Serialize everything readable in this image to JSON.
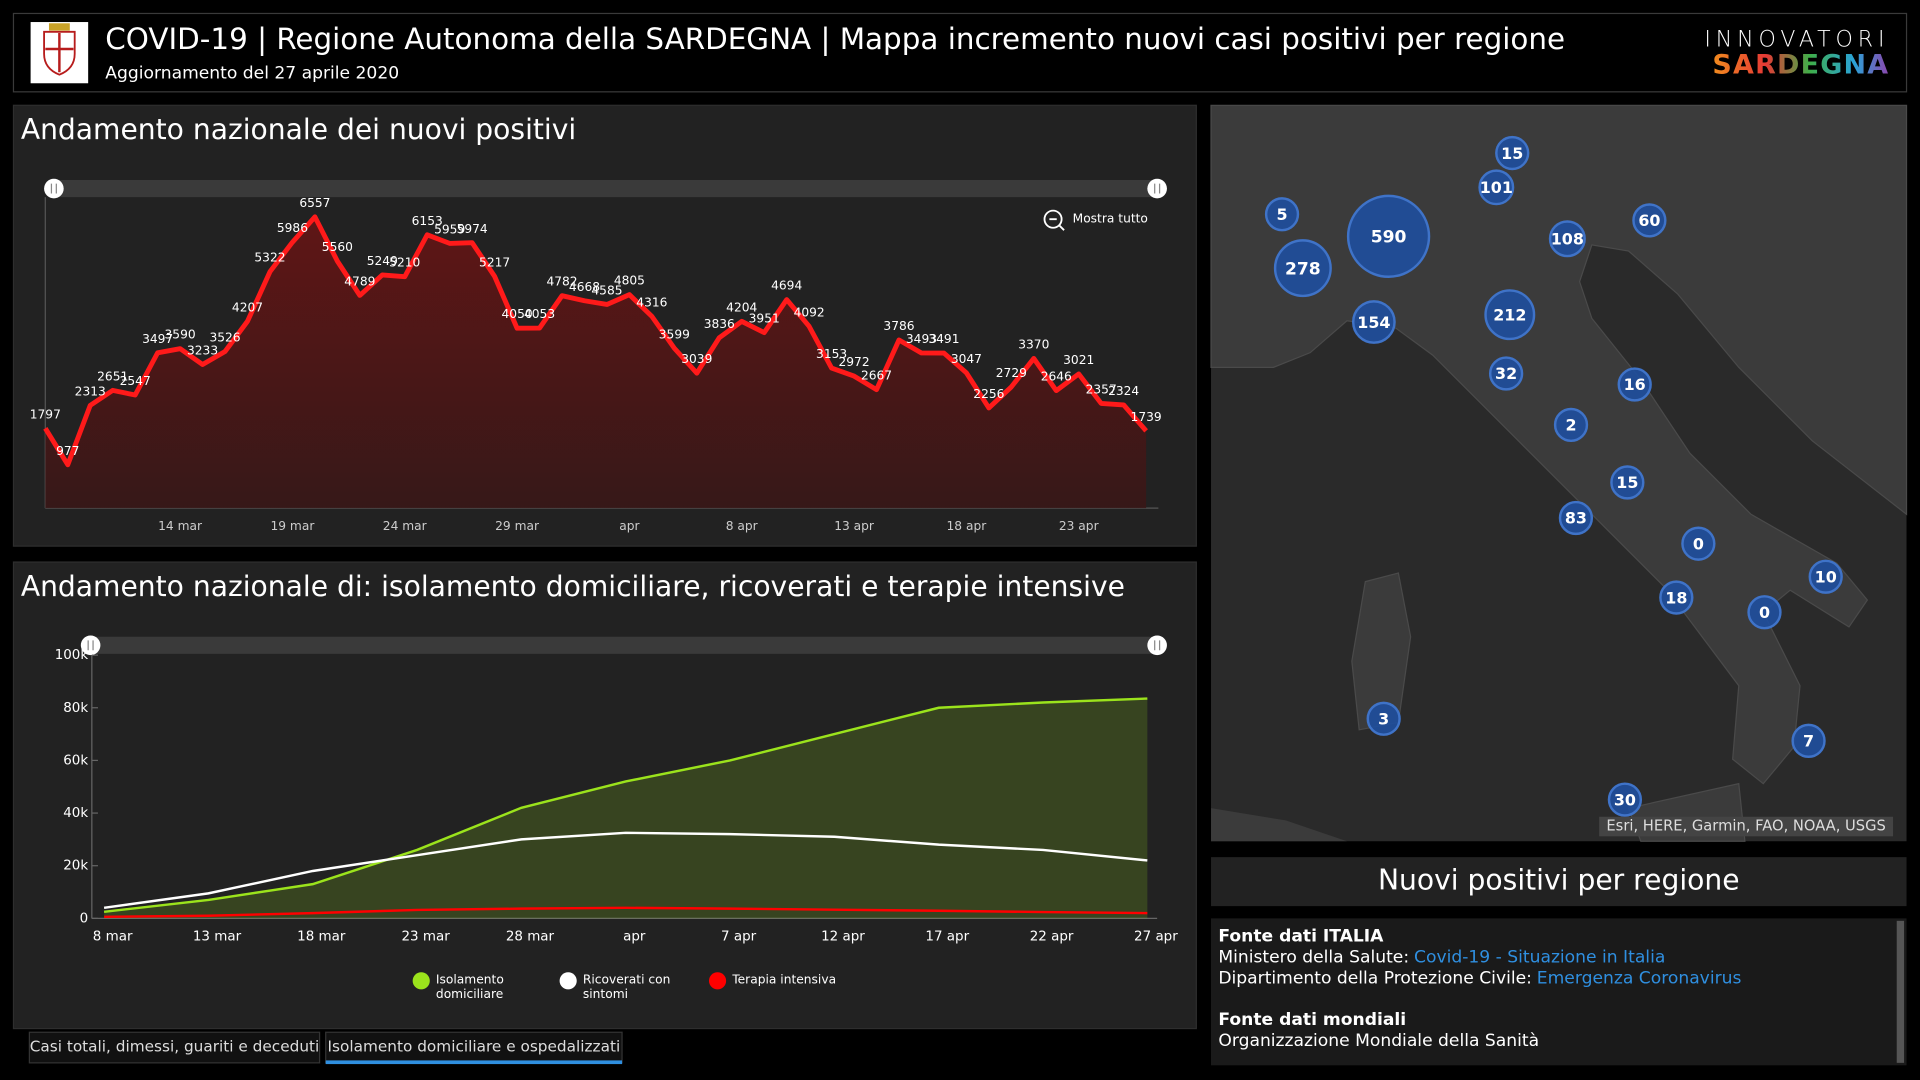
{
  "header": {
    "title": "COVID-19 | Regione Autonoma della SARDEGNA | Mappa incremento nuovi casi positivi per regione",
    "subtitle": "Aggiornamento del 27 aprile 2020",
    "logo_line1": "INNOVATORI",
    "logo_line2": "SARDEGNA"
  },
  "chart_data": [
    {
      "type": "area",
      "title": "Andamento nazionale dei nuovi positivi",
      "zoom_label": "Mostra tutto",
      "categories": [
        null,
        null,
        null,
        null,
        null,
        null,
        "14 mar",
        null,
        null,
        null,
        null,
        "19 mar",
        null,
        null,
        null,
        null,
        "24 mar",
        null,
        null,
        null,
        null,
        "29 mar",
        null,
        null,
        null,
        null,
        "apr",
        null,
        null,
        null,
        null,
        "8 apr",
        null,
        null,
        null,
        null,
        "13 apr",
        null,
        null,
        null,
        null,
        "18 apr",
        null,
        null,
        null,
        null,
        "23 apr",
        null,
        null,
        null
      ],
      "values": [
        1797,
        977,
        2313,
        2651,
        2547,
        3497,
        3590,
        3233,
        3526,
        4207,
        5322,
        5986,
        6557,
        5560,
        4789,
        5249,
        5210,
        6153,
        5959,
        5974,
        5217,
        4050,
        4053,
        4782,
        4668,
        4585,
        4805,
        4316,
        3599,
        3039,
        3836,
        4204,
        3951,
        4694,
        4092,
        3153,
        2972,
        2667,
        3786,
        3493,
        3491,
        3047,
        2256,
        2729,
        3370,
        2646,
        3021,
        2357,
        2324,
        1739
      ],
      "color": "#ff1a1a",
      "ylim": [
        0,
        7000
      ]
    },
    {
      "type": "line",
      "title": "Andamento nazionale di: isolamento domiciliare, ricoverati e terapie intensive",
      "categories": [
        "8 mar",
        "13 mar",
        "18 mar",
        "23 mar",
        "28 mar",
        "apr",
        "7 apr",
        "12 apr",
        "17 apr",
        "22 apr",
        "27 apr"
      ],
      "series": [
        {
          "name": "Isolamento domiciliare",
          "color": "#9be31c",
          "values": [
            2500,
            7000,
            13000,
            26000,
            42000,
            52000,
            60000,
            70000,
            80000,
            82000,
            83500
          ]
        },
        {
          "name": "Ricoverati con sintomi",
          "color": "#ffffff",
          "values": [
            4000,
            9500,
            18000,
            24000,
            30000,
            32500,
            32000,
            31000,
            28000,
            26000,
            22000
          ]
        },
        {
          "name": "Terapia intensiva",
          "color": "#ff0000",
          "values": [
            600,
            1000,
            2000,
            3200,
            3700,
            4000,
            3700,
            3300,
            2900,
            2400,
            2000
          ]
        }
      ],
      "ylim": [
        0,
        100000
      ],
      "yticks": [
        0,
        {
          "value": 20000,
          "label": "20k"
        },
        {
          "value": 40000,
          "label": "40k"
        },
        {
          "value": 60000,
          "label": "60k"
        },
        {
          "value": 80000,
          "label": "80k"
        },
        {
          "value": 100000,
          "label": "100k"
        }
      ],
      "legend": "bottom"
    }
  ],
  "map": {
    "bubbles": [
      15,
      101,
      5,
      590,
      278,
      108,
      60,
      154,
      212,
      32,
      16,
      2,
      15,
      83,
      0,
      10,
      18,
      0,
      3,
      7,
      30
    ],
    "attribution": "Esri, HERE, Garmin, FAO, NOAA, USGS"
  },
  "panel": {
    "title": "Nuovi positivi per regione",
    "sources": [
      {
        "heading": "Fonte dati ITALIA",
        "lines": [
          {
            "text": "Ministero della Salute:",
            "link": "Covid-19 - Situazione in Italia"
          },
          {
            "text": "Dipartimento della Protezione Civile:",
            "link": "Emergenza Coronavirus"
          }
        ]
      },
      {
        "heading": "Fonte dati mondiali",
        "lines": [
          {
            "text": "Organizzazione Mondiale della Sanità"
          }
        ]
      }
    ]
  },
  "tabs": [
    "Casi totali, dimessi, guariti e deceduti",
    "Isolamento domiciliare e ospedalizzati"
  ]
}
